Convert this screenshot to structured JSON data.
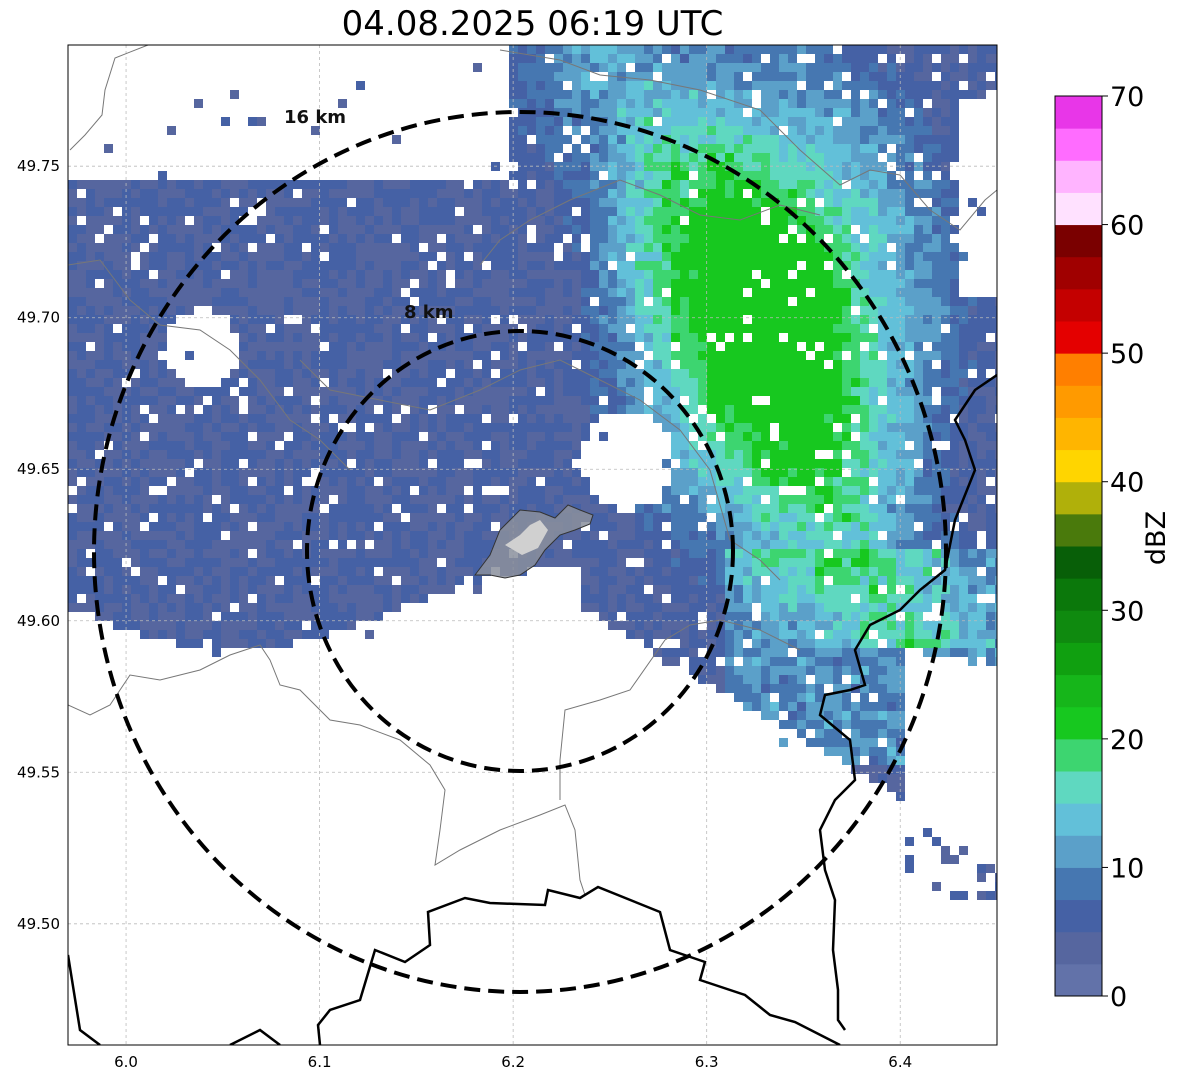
{
  "title": "04.08.2025 06:19 UTC",
  "map": {
    "lon_range": [
      5.97,
      6.45
    ],
    "lat_range": [
      49.46,
      49.79
    ],
    "x_ticks": [
      "6.0",
      "6.1",
      "6.2",
      "6.3",
      "6.4"
    ],
    "x_tick_values": [
      6.0,
      6.1,
      6.2,
      6.3,
      6.4
    ],
    "y_ticks": [
      "49.50",
      "49.55",
      "49.60",
      "49.65",
      "49.70",
      "49.75"
    ],
    "y_tick_values": [
      49.5,
      49.55,
      49.6,
      49.65,
      49.7,
      49.75
    ],
    "grid": true,
    "grid_color": "#bbbbbb",
    "center": {
      "lon": 6.204,
      "lat": 49.623
    },
    "rings": [
      {
        "label": "8 km",
        "radius_km": 8
      },
      {
        "label": "16 km",
        "radius_km": 16
      }
    ]
  },
  "colorbar": {
    "label": "dBZ",
    "ticks": [
      "0",
      "10",
      "20",
      "30",
      "40",
      "50",
      "60",
      "70"
    ],
    "tick_values": [
      0,
      10,
      20,
      30,
      40,
      50,
      60,
      70
    ],
    "range": [
      0,
      70
    ],
    "colors": [
      "#6272a9",
      "#56669f",
      "#4561a5",
      "#4677b1",
      "#5ba0c9",
      "#62c0d9",
      "#5fd8c0",
      "#3dd570",
      "#17c81f",
      "#16b61a",
      "#10a010",
      "#0f8a0f",
      "#0b780b",
      "#085f08",
      "#4a7a0c",
      "#b0b00a",
      "#ffd500",
      "#ffb500",
      "#ff9a00",
      "#ff7f00",
      "#e40000",
      "#c40000",
      "#a00000",
      "#7a0000",
      "#ffe1ff",
      "#ffb4ff",
      "#ff6cff",
      "#e836e8"
    ]
  },
  "chart_data": {
    "type": "heatmap",
    "title": "04.08.2025 06:19 UTC",
    "xlabel": "",
    "ylabel": "",
    "xlim": [
      5.97,
      6.45
    ],
    "ylim": [
      49.46,
      49.79
    ],
    "value_label": "dBZ",
    "value_range": [
      0,
      70
    ],
    "features": [
      {
        "name": "reflectivity band",
        "dbz_range": [
          0,
          10
        ],
        "extent": "most of map north of 49.60, extending to 49.54 in south-east"
      },
      {
        "name": "moderate echo",
        "dbz_range": [
          10,
          17
        ],
        "extent": "north-east and eastern parts"
      },
      {
        "name": "strong cell",
        "dbz_max": 22,
        "location": {
          "lon": 6.33,
          "lat": 49.71
        }
      }
    ]
  }
}
